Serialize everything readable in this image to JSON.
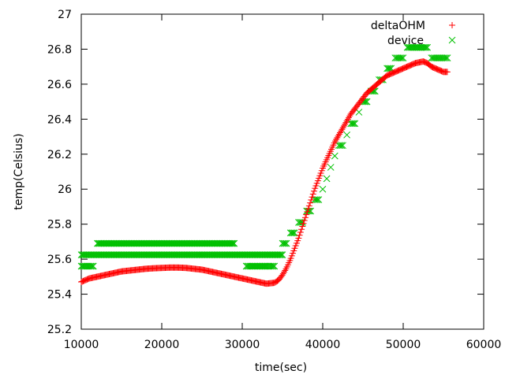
{
  "chart_data": {
    "type": "scatter",
    "xlabel": "time(sec)",
    "ylabel": "temp(Celsius)",
    "xlim": [
      10000,
      60000
    ],
    "ylim": [
      25.2,
      27.0
    ],
    "xticks": [
      10000,
      20000,
      30000,
      40000,
      50000,
      60000
    ],
    "yticks": [
      25.2,
      25.4,
      25.6,
      25.8,
      26.0,
      26.2,
      26.4,
      26.6,
      26.8,
      27.0
    ],
    "xtick_labels": [
      "10000",
      "20000",
      "30000",
      "40000",
      "50000",
      "60000"
    ],
    "ytick_labels": [
      "25.2",
      "25.4",
      "25.6",
      "25.8",
      "26",
      "26.2",
      "26.4",
      "26.6",
      "26.8",
      "27"
    ],
    "legend_position": "top-right",
    "grid": false,
    "series": [
      {
        "name": "deltaOHM",
        "marker": "plus",
        "color": "#ff0000",
        "x": [
          10000,
          11000,
          12000,
          13000,
          14000,
          15000,
          16000,
          17000,
          18000,
          19000,
          20000,
          21000,
          22000,
          23000,
          24000,
          25000,
          26000,
          27000,
          28000,
          29000,
          30000,
          31000,
          32000,
          33000,
          34000,
          34500,
          35000,
          35500,
          36000,
          36500,
          37000,
          37500,
          38000,
          38500,
          39000,
          39500,
          40000,
          40500,
          41000,
          41500,
          42000,
          42500,
          43000,
          43500,
          44000,
          44500,
          45000,
          45500,
          46000,
          46500,
          47000,
          47500,
          48000,
          48500,
          49000,
          49500,
          50000,
          50500,
          51000,
          51500,
          52000,
          52500,
          53000,
          53500,
          54000,
          54500,
          55000,
          55500
        ],
        "y": [
          25.47,
          25.49,
          25.5,
          25.51,
          25.52,
          25.53,
          25.535,
          25.54,
          25.545,
          25.548,
          25.55,
          25.552,
          25.552,
          25.55,
          25.545,
          25.54,
          25.53,
          25.52,
          25.51,
          25.5,
          25.49,
          25.48,
          25.47,
          25.46,
          25.465,
          25.48,
          25.51,
          25.55,
          25.6,
          25.66,
          25.72,
          25.79,
          25.86,
          25.93,
          26.0,
          26.06,
          26.12,
          26.17,
          26.22,
          26.27,
          26.31,
          26.35,
          26.39,
          26.43,
          26.46,
          26.49,
          26.52,
          26.55,
          26.57,
          26.59,
          26.61,
          26.63,
          26.65,
          26.66,
          26.67,
          26.68,
          26.69,
          26.7,
          26.71,
          26.72,
          26.725,
          26.73,
          26.72,
          26.7,
          26.69,
          26.68,
          26.67,
          26.67
        ]
      },
      {
        "name": "device",
        "marker": "cross",
        "color": "#00c000",
        "x": [
          10000,
          10500,
          11000,
          11500,
          12000,
          13000,
          14000,
          15000,
          16000,
          17000,
          18000,
          19000,
          20000,
          21000,
          22000,
          23000,
          24000,
          25000,
          26000,
          27000,
          28000,
          29000,
          10000,
          11000,
          12000,
          13000,
          14000,
          15000,
          16000,
          17000,
          18000,
          19000,
          20000,
          21000,
          22000,
          23000,
          24000,
          25000,
          26000,
          27000,
          28000,
          29000,
          30000,
          31000,
          32000,
          33000,
          34000,
          35000,
          30500,
          31000,
          32000,
          33000,
          33500,
          34000,
          35000,
          35500,
          36000,
          36500,
          37000,
          37500,
          38000,
          38500,
          39000,
          39500,
          40000,
          40500,
          41000,
          41500,
          42000,
          42500,
          43000,
          43500,
          44000,
          44500,
          45000,
          45500,
          46000,
          46500,
          47000,
          47500,
          48000,
          48500,
          49000,
          49500,
          50000,
          50500,
          51000,
          51500,
          52000,
          52500,
          53000,
          53500,
          54000,
          54500,
          55000,
          55500
        ],
        "y": [
          25.56,
          25.56,
          25.56,
          25.56,
          25.69,
          25.69,
          25.69,
          25.69,
          25.69,
          25.69,
          25.69,
          25.69,
          25.69,
          25.69,
          25.69,
          25.69,
          25.69,
          25.69,
          25.69,
          25.69,
          25.69,
          25.69,
          25.625,
          25.625,
          25.625,
          25.625,
          25.625,
          25.625,
          25.625,
          25.625,
          25.625,
          25.625,
          25.625,
          25.625,
          25.625,
          25.625,
          25.625,
          25.625,
          25.625,
          25.625,
          25.625,
          25.625,
          25.625,
          25.625,
          25.625,
          25.625,
          25.625,
          25.625,
          25.56,
          25.56,
          25.56,
          25.56,
          25.56,
          25.56,
          25.69,
          25.69,
          25.75,
          25.75,
          25.81,
          25.81,
          25.875,
          25.875,
          25.94,
          25.94,
          26.0,
          26.06,
          26.125,
          26.19,
          26.25,
          26.25,
          26.31,
          26.375,
          26.375,
          26.44,
          26.5,
          26.5,
          26.56,
          26.56,
          26.625,
          26.625,
          26.69,
          26.69,
          26.75,
          26.75,
          26.75,
          26.81,
          26.81,
          26.81,
          26.81,
          26.81,
          26.81,
          26.75,
          26.75,
          26.75,
          26.75,
          26.75
        ]
      }
    ]
  }
}
